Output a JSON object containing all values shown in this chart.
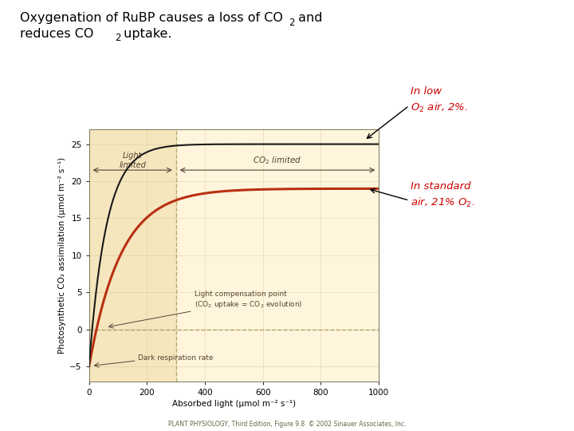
{
  "xlabel": "Absorbed light (μmol m⁻² s⁻¹)",
  "ylabel": "Photosynthetic CO₂ assimilation (μmol m⁻² s⁻¹)",
  "xlim": [
    0,
    1000
  ],
  "ylim": [
    -7,
    27
  ],
  "yticks": [
    -5,
    0,
    5,
    10,
    15,
    20,
    25
  ],
  "xticks": [
    0,
    200,
    400,
    600,
    800,
    1000
  ],
  "bg_color": "#FFFFFF",
  "plot_bg_color": "#FEF5DC",
  "shaded_light_color": "#F5E6BE",
  "shaded_x_end": 300,
  "curve_low_o2_color": "#1A1A1A",
  "curve_std_o2_color": "#B83010",
  "dashed_line_color": "#A09050",
  "annotation_color": "#CC0000",
  "label_color": "#554433",
  "footer": "PLANT PHYSIOLOGY, Third Edition, Figure 9.8  © 2002 Sinauer Associates, Inc."
}
